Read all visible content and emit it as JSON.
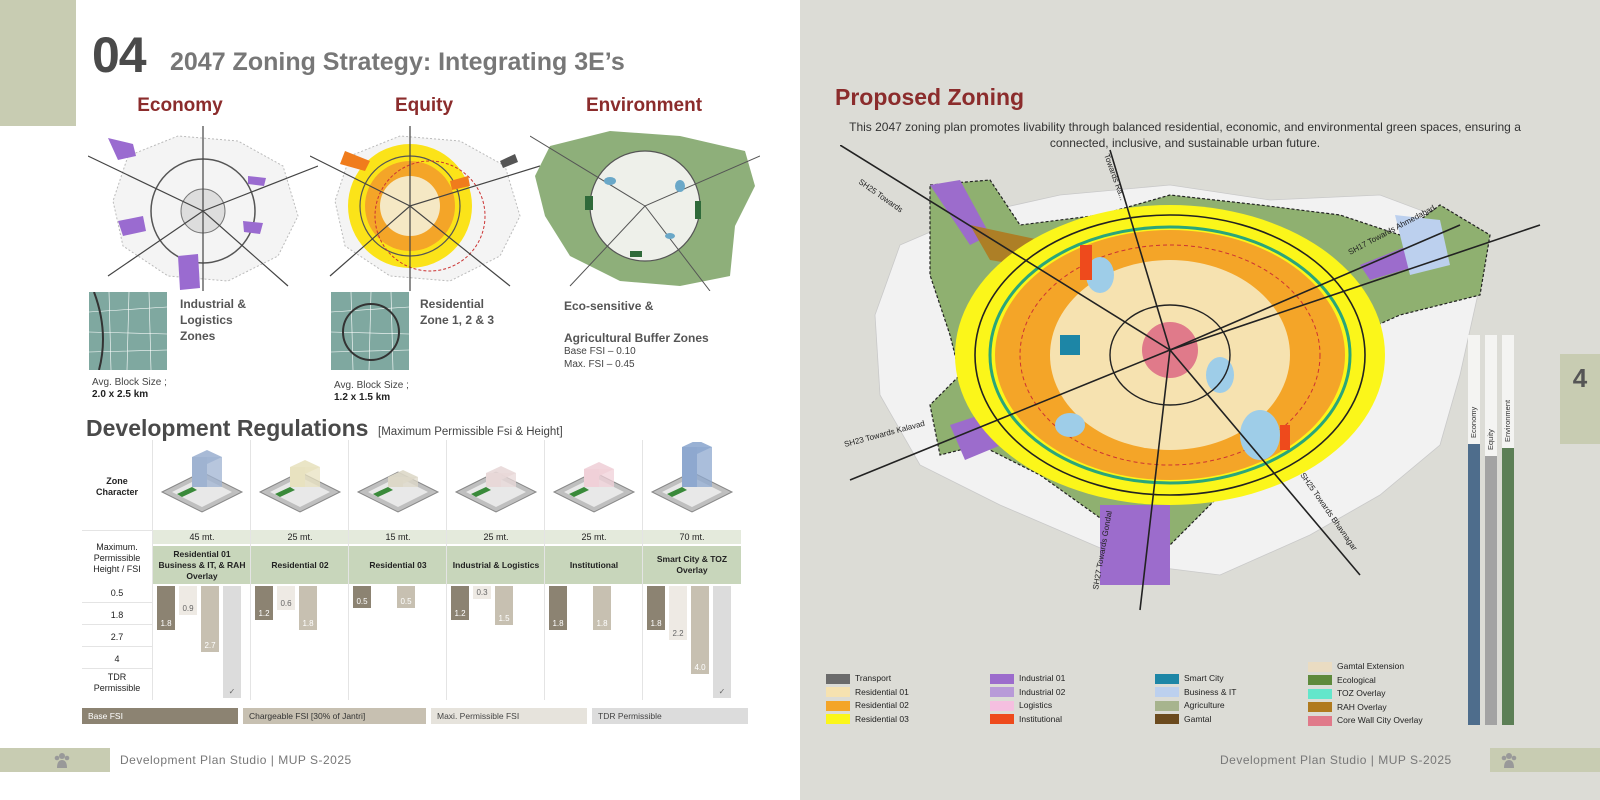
{
  "left": {
    "section_number": "04",
    "section_title": "2047 Zoning Strategy: Integrating 3E’s",
    "columns": [
      {
        "heading": "Economy",
        "zone_label": "Industrial &\nLogistics\nZones",
        "block_label": "Avg. Block Size ;",
        "block_value": "2.0 x 2.5 km"
      },
      {
        "heading": "Equity",
        "zone_label": "Residential\nZone 1, 2 & 3",
        "block_label": "Avg. Block Size ;",
        "block_value": "1.2 x 1.5 km"
      },
      {
        "heading": "Environment",
        "zone_label_1": "Eco-sensitive &",
        "zone_label_2": "Agricultural Buffer Zones",
        "base_fsi": "Base FSI – 0.10",
        "max_fsi": "Max. FSI – 0.45"
      }
    ],
    "dev_title": "Development Regulations",
    "dev_subtitle": "[Maximum Permissible Fsi & Height]",
    "row_labels": {
      "zone_character": "Zone\nCharacter",
      "max_height": "Maximum.\nPermissible\nHeight / FSI",
      "levels": [
        "0.5",
        "1.8",
        "2.7",
        "4",
        "TDR\nPermissible"
      ]
    },
    "zones": [
      {
        "name": "Residential 01\nBusiness & IT, & RAH Overlay",
        "height": "45 mt.",
        "base": "1.8",
        "chargeable": "0.9",
        "max": "2.7",
        "tdr": "✓"
      },
      {
        "name": "Residential 02",
        "height": "25 mt.",
        "base": "1.2",
        "chargeable": "0.6",
        "max": "1.8",
        "tdr": ""
      },
      {
        "name": "Residential 03",
        "height": "15 mt.",
        "base": "0.5",
        "chargeable": "",
        "max": "0.5",
        "tdr": ""
      },
      {
        "name": "Industrial & Logistics",
        "height": "25 mt.",
        "base": "1.2",
        "chargeable": "0.3",
        "max": "1.5",
        "tdr": ""
      },
      {
        "name": "Institutional",
        "height": "25 mt.",
        "base": "1.8",
        "chargeable": "",
        "max": "1.8",
        "tdr": ""
      },
      {
        "name": "Smart City & TOZ Overlay",
        "height": "70 mt.",
        "base": "1.8",
        "chargeable": "2.2",
        "max": "4.0",
        "tdr": "✓"
      }
    ],
    "fsi_legend": [
      "Base FSI",
      "Chargeable FSI [30% of Jantri]",
      "Maxi. Permissible FSI",
      "TDR Permissible"
    ],
    "fsi_colors": [
      "#8c8372",
      "#c7c0b1",
      "#e6e3dc",
      "#dcdcdc"
    ],
    "footer": "Development Plan Studio  |  MUP S-2025"
  },
  "right": {
    "title": "Proposed Zoning",
    "description": "This 2047 zoning plan promotes livability through balanced residential, economic, and environmental green spaces, ensuring a connected, inclusive, and sustainable urban future.",
    "road_labels": [
      "SH25 Towards",
      "Towards Ra...",
      "SH17 Towards Ahmedabad",
      "SH23 Towards Kalavad",
      "SH25 Towards Bhavnagar",
      "SH27 Towards Gondal"
    ],
    "bars": [
      {
        "name": "Economy",
        "color": "#4e6d8c",
        "level": 0.72
      },
      {
        "name": "Equity",
        "color": "#a3a3a3",
        "level": 0.69
      },
      {
        "name": "Environment",
        "color": "#5c7f56",
        "level": 0.71
      }
    ],
    "page_number": "4",
    "legend": [
      {
        "label": "Transport",
        "color": "#6b6b6b"
      },
      {
        "label": "Residential 01",
        "color": "#f6e2b0"
      },
      {
        "label": "Residential 02",
        "color": "#f4a528"
      },
      {
        "label": "Residential 03",
        "color": "#fbf61a"
      },
      {
        "label": "Industrial 01",
        "color": "#9c6ccc"
      },
      {
        "label": "Industrial 02",
        "color": "#b89ad8"
      },
      {
        "label": "Logistics",
        "color": "#f5bfe0"
      },
      {
        "label": "Institutional",
        "color": "#ee4a1c"
      },
      {
        "label": "Smart City",
        "color": "#1d86a6"
      },
      {
        "label": "Business & IT",
        "color": "#bcd0ee"
      },
      {
        "label": "Agriculture",
        "color": "#a7b48e"
      },
      {
        "label": "Gamtal",
        "color": "#6b4a1e"
      },
      {
        "label": "Gamtal Extension",
        "color": "#eadcc2"
      },
      {
        "label": "Ecological",
        "color": "#5e8a3c"
      },
      {
        "label": "TOZ Overlay",
        "color": "#63e6cb"
      },
      {
        "label": "RAH Overlay",
        "color": "#b07a1e"
      },
      {
        "label": "Core Wall City Overlay",
        "color": "#e07a8a"
      }
    ],
    "footer": "Development Plan Studio  |  MUP S-2025"
  }
}
